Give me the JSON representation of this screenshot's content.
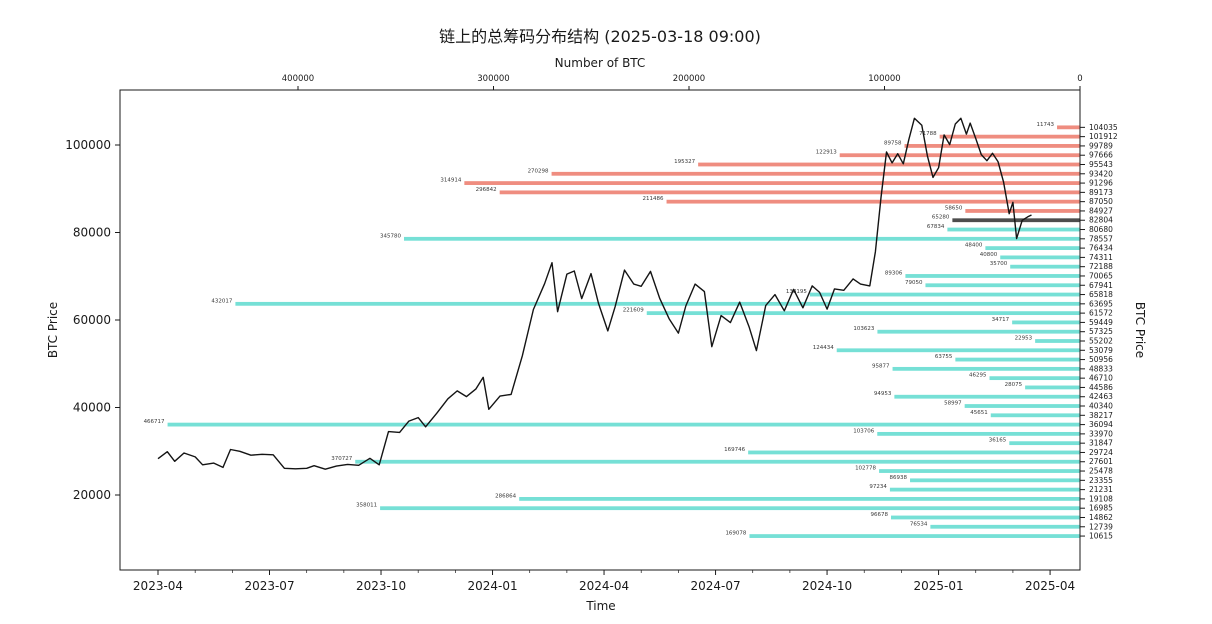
{
  "title": "链上的总筹码分布结构 (2025-03-18 09:00)",
  "axes": {
    "top_label": "Number of BTC",
    "bottom_label": "Time",
    "left_label": "BTC Price",
    "right_label": "BTC Price",
    "top_ticks": [
      400000,
      300000,
      200000,
      100000,
      0
    ],
    "bottom_ticks": [
      "2023-04",
      "2023-07",
      "2023-10",
      "2024-01",
      "2024-04",
      "2024-07",
      "2024-10",
      "2025-01",
      "2025-04"
    ],
    "left_ticks": [
      20000,
      40000,
      60000,
      80000,
      100000
    ]
  },
  "colors": {
    "above_cost": "#ef8d80",
    "below_cost": "#76e0d6",
    "current_bin": "#4d4d4d",
    "price_line": "#141414",
    "axis": "#1a1a1a"
  },
  "chart_data": {
    "type": "bar+line",
    "title": "链上的总筹码分布结构 (2025-03-18 09:00)",
    "xlabel": "Time",
    "ylabel": "BTC Price",
    "top_axis_label": "Number of BTC",
    "top_axis_range": [
      491000,
      0
    ],
    "ylim": [
      9000,
      112000
    ],
    "legend": "off",
    "grid": "off",
    "distribution_note": "horizontal volume-at-price bars, 0 anchored at right edge; red = bins above current price, turquoise = bins below, dark = current price bin",
    "bins": [
      {
        "price": 104035,
        "btc": 11743,
        "side": "above"
      },
      {
        "price": 101912,
        "btc": 71788,
        "side": "above"
      },
      {
        "price": 99789,
        "btc": 89758,
        "side": "above"
      },
      {
        "price": 97666,
        "btc": 122913,
        "side": "above"
      },
      {
        "price": 95543,
        "btc": 195327,
        "side": "above"
      },
      {
        "price": 93420,
        "btc": 270298,
        "side": "above"
      },
      {
        "price": 91296,
        "btc": 314914,
        "side": "above"
      },
      {
        "price": 89173,
        "btc": 296842,
        "side": "above"
      },
      {
        "price": 87050,
        "btc": 211486,
        "side": "above"
      },
      {
        "price": 84927,
        "btc": 58650,
        "side": "above"
      },
      {
        "price": 82804,
        "btc": 65280,
        "side": "current"
      },
      {
        "price": 80680,
        "btc": 67834,
        "side": "below"
      },
      {
        "price": 78557,
        "btc": 345780,
        "side": "below"
      },
      {
        "price": 76434,
        "btc": 48400,
        "side": "below"
      },
      {
        "price": 74311,
        "btc": 40800,
        "side": "below"
      },
      {
        "price": 72188,
        "btc": 35700,
        "side": "below"
      },
      {
        "price": 70065,
        "btc": 89306,
        "side": "below"
      },
      {
        "price": 67941,
        "btc": 79050,
        "side": "below"
      },
      {
        "price": 65818,
        "btc": 138195,
        "side": "below"
      },
      {
        "price": 63695,
        "btc": 432017,
        "side": "below"
      },
      {
        "price": 61572,
        "btc": 221609,
        "side": "below"
      },
      {
        "price": 59449,
        "btc": 34717,
        "side": "below"
      },
      {
        "price": 57325,
        "btc": 103623,
        "side": "below"
      },
      {
        "price": 55202,
        "btc": 22953,
        "side": "below"
      },
      {
        "price": 53079,
        "btc": 124434,
        "side": "below"
      },
      {
        "price": 50956,
        "btc": 63755,
        "side": "below"
      },
      {
        "price": 48833,
        "btc": 95877,
        "side": "below"
      },
      {
        "price": 46710,
        "btc": 46295,
        "side": "below"
      },
      {
        "price": 44586,
        "btc": 28075,
        "side": "below"
      },
      {
        "price": 42463,
        "btc": 94953,
        "side": "below"
      },
      {
        "price": 40340,
        "btc": 58997,
        "side": "below"
      },
      {
        "price": 38217,
        "btc": 45651,
        "side": "below"
      },
      {
        "price": 36094,
        "btc": 466717,
        "side": "below"
      },
      {
        "price": 33970,
        "btc": 103706,
        "side": "below"
      },
      {
        "price": 31847,
        "btc": 36165,
        "side": "below"
      },
      {
        "price": 29724,
        "btc": 169746,
        "side": "below"
      },
      {
        "price": 27601,
        "btc": 370727,
        "side": "below"
      },
      {
        "price": 25478,
        "btc": 102778,
        "side": "below"
      },
      {
        "price": 23355,
        "btc": 86938,
        "side": "below"
      },
      {
        "price": 21231,
        "btc": 97234,
        "side": "below"
      },
      {
        "price": 19108,
        "btc": 286864,
        "side": "below"
      },
      {
        "price": 16985,
        "btc": 358011,
        "side": "below"
      },
      {
        "price": 14862,
        "btc": 96678,
        "side": "below"
      },
      {
        "price": 12739,
        "btc": 76534,
        "side": "below"
      },
      {
        "price": 10615,
        "btc": 169078,
        "side": "below"
      }
    ],
    "price_line": {
      "name": "BTC Price",
      "x_unit": "months since 2023-04",
      "points": [
        [
          0,
          28300
        ],
        [
          0.25,
          29900
        ],
        [
          0.45,
          27700
        ],
        [
          0.7,
          29600
        ],
        [
          1.0,
          28700
        ],
        [
          1.2,
          26900
        ],
        [
          1.5,
          27300
        ],
        [
          1.75,
          26300
        ],
        [
          1.95,
          30400
        ],
        [
          2.2,
          30000
        ],
        [
          2.5,
          29100
        ],
        [
          2.8,
          29300
        ],
        [
          3.1,
          29200
        ],
        [
          3.4,
          26100
        ],
        [
          3.7,
          26000
        ],
        [
          4.0,
          26100
        ],
        [
          4.2,
          26700
        ],
        [
          4.5,
          25900
        ],
        [
          4.8,
          26600
        ],
        [
          5.1,
          27000
        ],
        [
          5.4,
          26800
        ],
        [
          5.7,
          28400
        ],
        [
          5.95,
          26900
        ],
        [
          6.2,
          34500
        ],
        [
          6.5,
          34300
        ],
        [
          6.75,
          36900
        ],
        [
          7.0,
          37700
        ],
        [
          7.2,
          35600
        ],
        [
          7.5,
          38700
        ],
        [
          7.8,
          42000
        ],
        [
          8.05,
          43800
        ],
        [
          8.3,
          42500
        ],
        [
          8.55,
          44200
        ],
        [
          8.75,
          46900
        ],
        [
          8.9,
          39600
        ],
        [
          9.2,
          42600
        ],
        [
          9.5,
          43000
        ],
        [
          9.8,
          51800
        ],
        [
          10.1,
          62400
        ],
        [
          10.4,
          68300
        ],
        [
          10.6,
          73100
        ],
        [
          10.75,
          61900
        ],
        [
          11.0,
          70500
        ],
        [
          11.2,
          71200
        ],
        [
          11.4,
          64900
        ],
        [
          11.65,
          70600
        ],
        [
          11.85,
          63800
        ],
        [
          12.1,
          57500
        ],
        [
          12.3,
          63100
        ],
        [
          12.55,
          71400
        ],
        [
          12.8,
          68200
        ],
        [
          13.0,
          67700
        ],
        [
          13.25,
          71100
        ],
        [
          13.5,
          64900
        ],
        [
          13.75,
          60300
        ],
        [
          14.0,
          57000
        ],
        [
          14.2,
          63200
        ],
        [
          14.45,
          68200
        ],
        [
          14.7,
          66500
        ],
        [
          14.9,
          53900
        ],
        [
          15.15,
          61000
        ],
        [
          15.4,
          59400
        ],
        [
          15.65,
          64100
        ],
        [
          15.9,
          58500
        ],
        [
          16.1,
          53000
        ],
        [
          16.35,
          63300
        ],
        [
          16.6,
          65800
        ],
        [
          16.85,
          62100
        ],
        [
          17.1,
          67000
        ],
        [
          17.35,
          62800
        ],
        [
          17.6,
          67800
        ],
        [
          17.8,
          66300
        ],
        [
          18.0,
          62500
        ],
        [
          18.2,
          67100
        ],
        [
          18.45,
          66800
        ],
        [
          18.7,
          69400
        ],
        [
          18.9,
          68200
        ],
        [
          19.15,
          67800
        ],
        [
          19.3,
          75600
        ],
        [
          19.45,
          88000
        ],
        [
          19.6,
          98400
        ],
        [
          19.75,
          95900
        ],
        [
          19.9,
          98000
        ],
        [
          20.05,
          95700
        ],
        [
          20.2,
          101200
        ],
        [
          20.35,
          106100
        ],
        [
          20.55,
          104500
        ],
        [
          20.7,
          97500
        ],
        [
          20.85,
          92600
        ],
        [
          21.0,
          94800
        ],
        [
          21.15,
          102300
        ],
        [
          21.3,
          100100
        ],
        [
          21.45,
          104800
        ],
        [
          21.6,
          106100
        ],
        [
          21.75,
          102500
        ],
        [
          21.85,
          105000
        ],
        [
          22.0,
          101500
        ],
        [
          22.15,
          97800
        ],
        [
          22.3,
          96400
        ],
        [
          22.45,
          98100
        ],
        [
          22.6,
          96200
        ],
        [
          22.75,
          91500
        ],
        [
          22.9,
          84300
        ],
        [
          23.0,
          86900
        ],
        [
          23.1,
          78600
        ],
        [
          23.25,
          82800
        ],
        [
          23.4,
          83600
        ],
        [
          23.5,
          84000
        ]
      ]
    }
  }
}
